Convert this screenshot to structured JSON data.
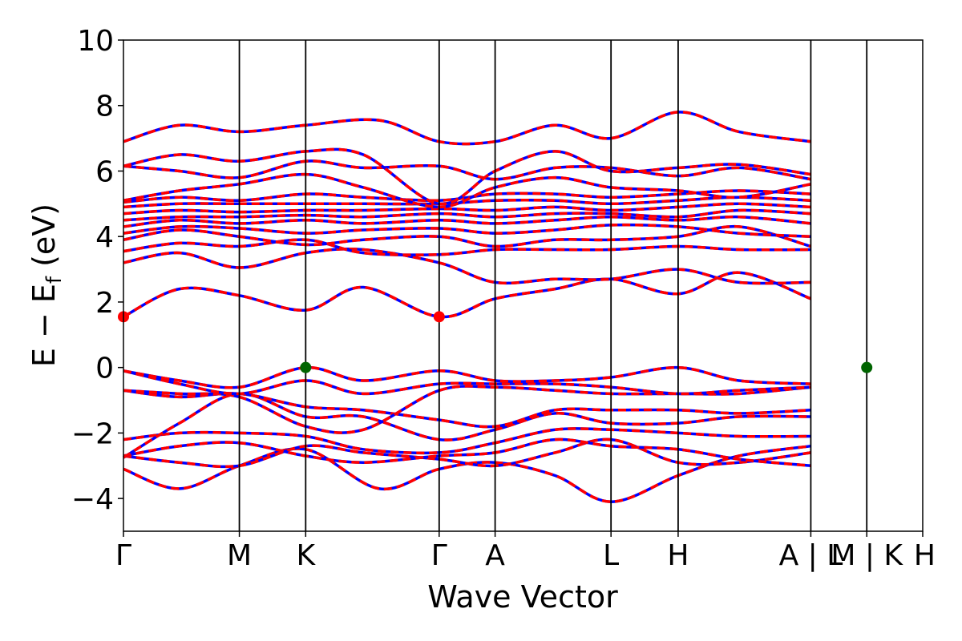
{
  "chart_data": {
    "type": "line",
    "xlabel": "Wave Vector",
    "ylabel": "E − E",
    "ylabel_sub": "f",
    "ylabel_unit": " (eV)",
    "ylim": [
      -5,
      10
    ],
    "yticks": [
      -4,
      -2,
      0,
      2,
      4,
      6,
      8,
      10
    ],
    "ytick_labels": [
      "−4",
      "−2",
      "0",
      "2",
      "4",
      "6",
      "8",
      "10"
    ],
    "x_range": [
      0,
      1
    ],
    "kpoints": [
      {
        "label": "Γ",
        "x": 0.0
      },
      {
        "label": "M",
        "x": 0.145
      },
      {
        "label": "K",
        "x": 0.228
      },
      {
        "label": "Γ",
        "x": 0.395
      },
      {
        "label": "A",
        "x": 0.465
      },
      {
        "label": "L",
        "x": 0.61
      },
      {
        "label": "H",
        "x": 0.694
      },
      {
        "label": "A | L",
        "x": 0.86
      },
      {
        "label": "M | K",
        "x": 0.93
      },
      {
        "label": "H",
        "x": 1.0
      }
    ],
    "band_colors": {
      "spin_up": "#ff0000",
      "spin_down": "#0000ff"
    },
    "vbm_color": "#006400",
    "cbm_color": "#ff0000",
    "vbm_points": [
      [
        0.228,
        0.0
      ],
      [
        0.93,
        0.0
      ]
    ],
    "cbm_points": [
      [
        0.0,
        1.55
      ],
      [
        0.395,
        1.55
      ]
    ],
    "bands": [
      [
        [
          0.0,
          -3.1
        ],
        [
          0.07,
          -3.7
        ],
        [
          0.145,
          -3.0
        ],
        [
          0.228,
          -2.5
        ],
        [
          0.32,
          -3.7
        ],
        [
          0.395,
          -3.1
        ],
        [
          0.465,
          -2.9
        ],
        [
          0.54,
          -3.3
        ],
        [
          0.61,
          -4.1
        ],
        [
          0.694,
          -3.3
        ],
        [
          0.77,
          -2.7
        ],
        [
          0.86,
          -2.4
        ]
      ],
      [
        [
          0.0,
          -2.7
        ],
        [
          0.07,
          -2.9
        ],
        [
          0.145,
          -3.0
        ],
        [
          0.228,
          -2.4
        ],
        [
          0.3,
          -2.6
        ],
        [
          0.395,
          -2.8
        ],
        [
          0.465,
          -3.0
        ],
        [
          0.54,
          -2.6
        ],
        [
          0.61,
          -2.2
        ],
        [
          0.694,
          -2.9
        ],
        [
          0.77,
          -2.9
        ],
        [
          0.86,
          -2.6
        ]
      ],
      [
        [
          0.0,
          -2.7
        ],
        [
          0.07,
          -2.4
        ],
        [
          0.145,
          -2.3
        ],
        [
          0.228,
          -2.7
        ],
        [
          0.3,
          -2.9
        ],
        [
          0.395,
          -2.7
        ],
        [
          0.465,
          -2.6
        ],
        [
          0.54,
          -2.2
        ],
        [
          0.61,
          -2.4
        ],
        [
          0.694,
          -2.5
        ],
        [
          0.77,
          -2.8
        ],
        [
          0.86,
          -3.0
        ]
      ],
      [
        [
          0.0,
          -2.2
        ],
        [
          0.07,
          -2.0
        ],
        [
          0.145,
          -2.0
        ],
        [
          0.228,
          -2.1
        ],
        [
          0.3,
          -2.5
        ],
        [
          0.395,
          -2.6
        ],
        [
          0.465,
          -2.3
        ],
        [
          0.54,
          -1.9
        ],
        [
          0.61,
          -1.9
        ],
        [
          0.694,
          -2.0
        ],
        [
          0.77,
          -2.1
        ],
        [
          0.86,
          -2.1
        ]
      ],
      [
        [
          0.0,
          -2.75
        ],
        [
          0.07,
          -1.7
        ],
        [
          0.145,
          -0.8
        ],
        [
          0.228,
          -1.5
        ],
        [
          0.3,
          -1.5
        ],
        [
          0.395,
          -2.2
        ],
        [
          0.465,
          -1.9
        ],
        [
          0.54,
          -1.4
        ],
        [
          0.61,
          -1.7
        ],
        [
          0.694,
          -1.7
        ],
        [
          0.77,
          -1.5
        ],
        [
          0.86,
          -1.5
        ]
      ],
      [
        [
          0.0,
          -0.7
        ],
        [
          0.07,
          -0.9
        ],
        [
          0.145,
          -0.8
        ],
        [
          0.228,
          -1.2
        ],
        [
          0.3,
          -1.3
        ],
        [
          0.395,
          -1.6
        ],
        [
          0.465,
          -1.8
        ],
        [
          0.54,
          -1.3
        ],
        [
          0.61,
          -1.3
        ],
        [
          0.694,
          -1.3
        ],
        [
          0.77,
          -1.4
        ],
        [
          0.86,
          -1.3
        ]
      ],
      [
        [
          0.0,
          -0.7
        ],
        [
          0.07,
          -0.8
        ],
        [
          0.145,
          -0.9
        ],
        [
          0.228,
          -1.8
        ],
        [
          0.3,
          -1.9
        ],
        [
          0.395,
          -0.7
        ],
        [
          0.465,
          -0.6
        ],
        [
          0.54,
          -0.7
        ],
        [
          0.61,
          -0.8
        ],
        [
          0.694,
          -0.8
        ],
        [
          0.77,
          -0.8
        ],
        [
          0.86,
          -0.6
        ]
      ],
      [
        [
          0.0,
          -0.1
        ],
        [
          0.07,
          -0.5
        ],
        [
          0.145,
          -0.8
        ],
        [
          0.228,
          -0.4
        ],
        [
          0.3,
          -0.8
        ],
        [
          0.395,
          -0.5
        ],
        [
          0.465,
          -0.5
        ],
        [
          0.54,
          -0.5
        ],
        [
          0.61,
          -0.6
        ],
        [
          0.694,
          -0.8
        ],
        [
          0.77,
          -0.7
        ],
        [
          0.86,
          -0.6
        ]
      ],
      [
        [
          0.0,
          -0.1
        ],
        [
          0.07,
          -0.4
        ],
        [
          0.145,
          -0.6
        ],
        [
          0.228,
          0.0
        ],
        [
          0.3,
          -0.4
        ],
        [
          0.395,
          -0.1
        ],
        [
          0.465,
          -0.4
        ],
        [
          0.54,
          -0.4
        ],
        [
          0.61,
          -0.3
        ],
        [
          0.694,
          0.0
        ],
        [
          0.77,
          -0.4
        ],
        [
          0.86,
          -0.5
        ]
      ],
      [
        [
          0.0,
          1.55
        ],
        [
          0.07,
          2.4
        ],
        [
          0.145,
          2.2
        ],
        [
          0.228,
          1.75
        ],
        [
          0.3,
          2.45
        ],
        [
          0.395,
          1.55
        ],
        [
          0.465,
          2.1
        ],
        [
          0.54,
          2.4
        ],
        [
          0.61,
          2.7
        ],
        [
          0.694,
          2.25
        ],
        [
          0.77,
          2.9
        ],
        [
          0.86,
          2.1
        ]
      ],
      [
        [
          0.0,
          3.2
        ],
        [
          0.07,
          3.5
        ],
        [
          0.145,
          3.05
        ],
        [
          0.228,
          3.5
        ],
        [
          0.3,
          3.6
        ],
        [
          0.395,
          3.2
        ],
        [
          0.465,
          2.6
        ],
        [
          0.54,
          2.7
        ],
        [
          0.61,
          2.7
        ],
        [
          0.694,
          3.0
        ],
        [
          0.77,
          2.6
        ],
        [
          0.86,
          2.6
        ]
      ],
      [
        [
          0.0,
          3.55
        ],
        [
          0.07,
          3.8
        ],
        [
          0.145,
          3.7
        ],
        [
          0.228,
          3.9
        ],
        [
          0.3,
          3.5
        ],
        [
          0.395,
          3.45
        ],
        [
          0.465,
          3.6
        ],
        [
          0.54,
          3.6
        ],
        [
          0.61,
          3.6
        ],
        [
          0.694,
          3.7
        ],
        [
          0.77,
          3.6
        ],
        [
          0.86,
          3.6
        ]
      ],
      [
        [
          0.0,
          3.9
        ],
        [
          0.07,
          4.2
        ],
        [
          0.145,
          4.0
        ],
        [
          0.228,
          3.75
        ],
        [
          0.3,
          3.9
        ],
        [
          0.395,
          4.0
        ],
        [
          0.465,
          3.7
        ],
        [
          0.54,
          3.9
        ],
        [
          0.61,
          3.9
        ],
        [
          0.694,
          4.0
        ],
        [
          0.77,
          4.3
        ],
        [
          0.86,
          3.7
        ]
      ],
      [
        [
          0.0,
          4.1
        ],
        [
          0.07,
          4.3
        ],
        [
          0.145,
          4.25
        ],
        [
          0.228,
          4.1
        ],
        [
          0.3,
          4.2
        ],
        [
          0.395,
          4.25
        ],
        [
          0.465,
          4.1
        ],
        [
          0.54,
          4.2
        ],
        [
          0.61,
          4.35
        ],
        [
          0.694,
          4.3
        ],
        [
          0.77,
          4.1
        ],
        [
          0.86,
          4.0
        ]
      ],
      [
        [
          0.0,
          4.3
        ],
        [
          0.07,
          4.5
        ],
        [
          0.145,
          4.4
        ],
        [
          0.228,
          4.5
        ],
        [
          0.3,
          4.4
        ],
        [
          0.395,
          4.5
        ],
        [
          0.465,
          4.4
        ],
        [
          0.54,
          4.5
        ],
        [
          0.61,
          4.6
        ],
        [
          0.694,
          4.5
        ],
        [
          0.77,
          4.6
        ],
        [
          0.86,
          4.4
        ]
      ],
      [
        [
          0.0,
          4.5
        ],
        [
          0.07,
          4.6
        ],
        [
          0.145,
          4.6
        ],
        [
          0.228,
          4.65
        ],
        [
          0.3,
          4.6
        ],
        [
          0.395,
          4.7
        ],
        [
          0.465,
          4.6
        ],
        [
          0.54,
          4.7
        ],
        [
          0.61,
          4.7
        ],
        [
          0.694,
          4.6
        ],
        [
          0.77,
          4.8
        ],
        [
          0.86,
          4.7
        ]
      ],
      [
        [
          0.0,
          4.7
        ],
        [
          0.07,
          4.8
        ],
        [
          0.145,
          4.75
        ],
        [
          0.228,
          4.8
        ],
        [
          0.3,
          4.8
        ],
        [
          0.395,
          4.85
        ],
        [
          0.465,
          4.8
        ],
        [
          0.54,
          4.9
        ],
        [
          0.61,
          4.8
        ],
        [
          0.694,
          4.9
        ],
        [
          0.77,
          5.0
        ],
        [
          0.86,
          4.9
        ]
      ],
      [
        [
          0.0,
          4.9
        ],
        [
          0.07,
          5.0
        ],
        [
          0.145,
          5.0
        ],
        [
          0.228,
          5.0
        ],
        [
          0.3,
          5.0
        ],
        [
          0.395,
          5.0
        ],
        [
          0.465,
          5.1
        ],
        [
          0.54,
          5.1
        ],
        [
          0.61,
          5.0
        ],
        [
          0.694,
          5.1
        ],
        [
          0.77,
          5.2
        ],
        [
          0.86,
          5.1
        ]
      ],
      [
        [
          0.0,
          5.05
        ],
        [
          0.07,
          5.2
        ],
        [
          0.145,
          5.1
        ],
        [
          0.228,
          5.3
        ],
        [
          0.3,
          5.2
        ],
        [
          0.395,
          5.1
        ],
        [
          0.465,
          5.3
        ],
        [
          0.54,
          5.3
        ],
        [
          0.61,
          5.2
        ],
        [
          0.694,
          5.3
        ],
        [
          0.77,
          5.4
        ],
        [
          0.86,
          5.3
        ]
      ],
      [
        [
          0.0,
          5.1
        ],
        [
          0.07,
          5.4
        ],
        [
          0.145,
          5.6
        ],
        [
          0.228,
          5.9
        ],
        [
          0.3,
          5.5
        ],
        [
          0.395,
          4.9
        ],
        [
          0.465,
          5.5
        ],
        [
          0.54,
          5.8
        ],
        [
          0.61,
          5.5
        ],
        [
          0.694,
          5.4
        ],
        [
          0.77,
          5.2
        ],
        [
          0.86,
          5.6
        ]
      ],
      [
        [
          0.0,
          6.15
        ],
        [
          0.07,
          6.0
        ],
        [
          0.145,
          5.8
        ],
        [
          0.228,
          6.3
        ],
        [
          0.3,
          6.1
        ],
        [
          0.395,
          6.15
        ],
        [
          0.465,
          5.75
        ],
        [
          0.54,
          6.1
        ],
        [
          0.61,
          6.1
        ],
        [
          0.694,
          5.85
        ],
        [
          0.77,
          6.1
        ],
        [
          0.86,
          5.75
        ]
      ],
      [
        [
          0.0,
          6.15
        ],
        [
          0.07,
          6.5
        ],
        [
          0.145,
          6.3
        ],
        [
          0.228,
          6.6
        ],
        [
          0.3,
          6.5
        ],
        [
          0.395,
          5.0
        ],
        [
          0.465,
          6.0
        ],
        [
          0.54,
          6.6
        ],
        [
          0.61,
          6.0
        ],
        [
          0.694,
          6.1
        ],
        [
          0.77,
          6.2
        ],
        [
          0.86,
          5.9
        ]
      ],
      [
        [
          0.0,
          6.9
        ],
        [
          0.07,
          7.4
        ],
        [
          0.145,
          7.2
        ],
        [
          0.228,
          7.4
        ],
        [
          0.32,
          7.55
        ],
        [
          0.395,
          6.9
        ],
        [
          0.465,
          6.9
        ],
        [
          0.54,
          7.4
        ],
        [
          0.61,
          7.0
        ],
        [
          0.694,
          7.8
        ],
        [
          0.77,
          7.2
        ],
        [
          0.86,
          6.9
        ]
      ]
    ]
  }
}
